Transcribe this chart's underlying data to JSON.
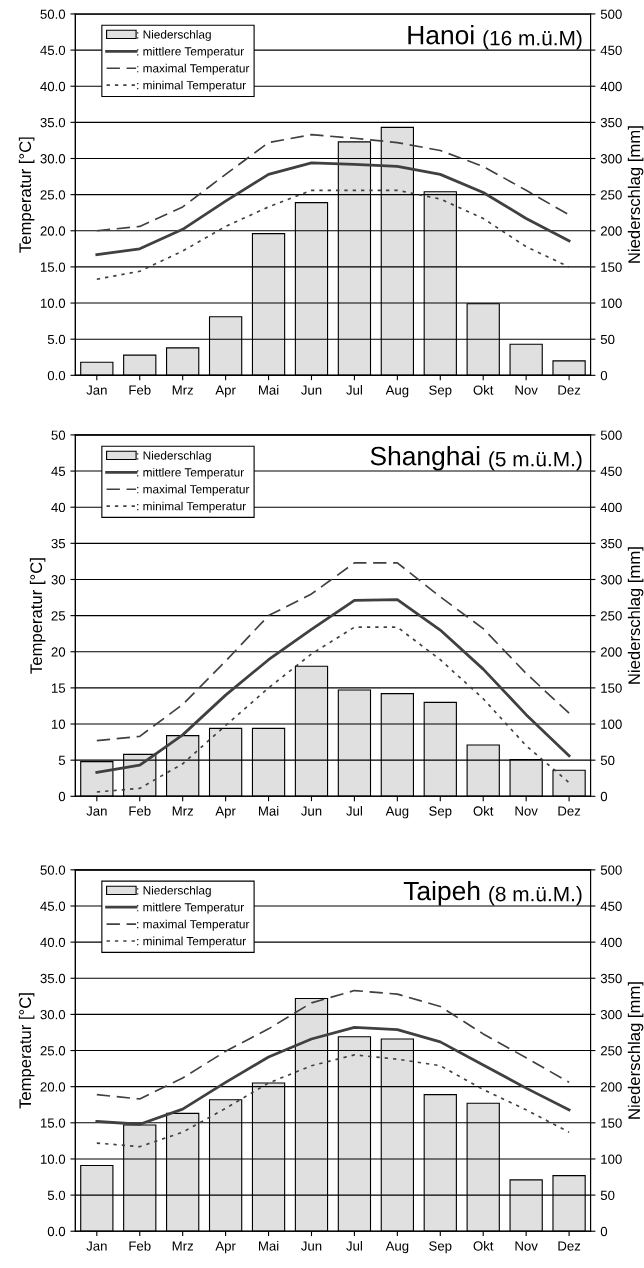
{
  "chart_data": [
    {
      "type": "bar",
      "title": "Hanoi",
      "subtitle": "(16 m.ü.M)",
      "categories": [
        "Jan",
        "Feb",
        "Mrz",
        "Apr",
        "Mai",
        "Jun",
        "Jul",
        "Aug",
        "Sep",
        "Okt",
        "Nov",
        "Dez"
      ],
      "ylabel": "Temperatur [°C]",
      "y2label": "Niederschlag [mm]",
      "ylim": [
        0,
        50
      ],
      "yticks": [
        {
          "value": 0,
          "label": "0.0"
        },
        {
          "value": 5,
          "label": "5.0"
        },
        {
          "value": 10,
          "label": "10.0"
        },
        {
          "value": 15,
          "label": "15.0"
        },
        {
          "value": 20,
          "label": "20.0"
        },
        {
          "value": 25,
          "label": "25.0"
        },
        {
          "value": 30,
          "label": "30.0"
        },
        {
          "value": 35,
          "label": "35.0"
        },
        {
          "value": 40,
          "label": "40.0"
        },
        {
          "value": 45,
          "label": "45.0"
        },
        {
          "value": 50,
          "label": "50.0"
        }
      ],
      "y2lim": [
        0,
        500
      ],
      "y2ticks": [
        0,
        50,
        100,
        150,
        200,
        250,
        300,
        350,
        400,
        450,
        500
      ],
      "grid": "y",
      "legend": "top left",
      "series": [
        {
          "name": ": Niederschlag",
          "axis": "y2",
          "color": "#e0e0e0",
          "values": [
            18,
            28,
            38,
            81,
            196,
            239,
            323,
            343,
            254,
            99,
            43,
            20
          ]
        },
        {
          "name": ": mittlere Temperatur",
          "type": "line",
          "line_style": "solid",
          "color": "#404040",
          "values": [
            16.7,
            17.5,
            20.2,
            24.1,
            27.8,
            29.4,
            29.2,
            28.9,
            27.8,
            25.3,
            21.7,
            18.6
          ]
        },
        {
          "name": ": maximal Temperatur",
          "type": "line",
          "line_style": "dashed",
          "color": "#404040",
          "values": [
            20.0,
            20.6,
            23.3,
            27.8,
            32.2,
            33.3,
            32.8,
            32.2,
            31.1,
            28.9,
            25.6,
            22.2
          ]
        },
        {
          "name": ": minimal Temperatur",
          "type": "line",
          "line_style": "dotted",
          "color": "#404040",
          "values": [
            13.3,
            14.4,
            17.2,
            20.6,
            23.3,
            25.6,
            25.6,
            25.6,
            24.4,
            21.7,
            17.8,
            15.0
          ]
        }
      ]
    },
    {
      "type": "bar",
      "title": "Shanghai",
      "subtitle": "(5 m.ü.M.)",
      "categories": [
        "Jan",
        "Feb",
        "Mrz",
        "Apr",
        "Mai",
        "Jun",
        "Jul",
        "Aug",
        "Sep",
        "Okt",
        "Nov",
        "Dez"
      ],
      "ylabel": "Temperatur [°C]",
      "y2label": "Niederschlag [mm]",
      "ylim": [
        0,
        50
      ],
      "yticks": [
        0,
        5,
        10,
        15,
        20,
        25,
        30,
        35,
        40,
        45,
        50
      ],
      "y2lim": [
        0,
        500
      ],
      "y2ticks": [
        0,
        50,
        100,
        150,
        200,
        250,
        300,
        350,
        400,
        450,
        500
      ],
      "grid": "y",
      "legend": "top left",
      "series": [
        {
          "name": ": Niederschlag",
          "axis": "y2",
          "color": "#e0e0e0",
          "values": [
            48,
            58,
            84,
            94,
            94,
            180,
            147,
            142,
            130,
            71,
            51,
            36
          ]
        },
        {
          "name": ": mittlere Temperatur",
          "type": "line",
          "line_style": "solid",
          "color": "#404040",
          "values": [
            3.3,
            4.3,
            8.5,
            14.0,
            18.9,
            23.1,
            27.1,
            27.2,
            23.0,
            17.6,
            11.3,
            5.6
          ]
        },
        {
          "name": ": maximal Temperatur",
          "type": "line",
          "line_style": "dashed",
          "color": "#404040",
          "values": [
            7.7,
            8.3,
            12.7,
            18.7,
            25.0,
            28.0,
            32.3,
            32.3,
            27.6,
            23.2,
            17.0,
            11.5
          ]
        },
        {
          "name": ": minimal Temperatur",
          "type": "line",
          "line_style": "dotted",
          "color": "#404040",
          "values": [
            0.6,
            1.1,
            4.5,
            9.8,
            15.0,
            19.7,
            23.4,
            23.4,
            18.9,
            13.5,
            7.0,
            1.9
          ]
        }
      ]
    },
    {
      "type": "bar",
      "title": "Taipeh",
      "subtitle": "(8 m.ü.M.)",
      "categories": [
        "Jan",
        "Feb",
        "Mrz",
        "Apr",
        "Mai",
        "Jun",
        "Jul",
        "Aug",
        "Sep",
        "Okt",
        "Nov",
        "Dez"
      ],
      "ylabel": "Temperatur [°C]",
      "y2label": "Niederschlag [mm]",
      "ylim": [
        0,
        50
      ],
      "yticks": [
        {
          "value": 0,
          "label": "0.0"
        },
        {
          "value": 5,
          "label": "5.0"
        },
        {
          "value": 10,
          "label": "10.0"
        },
        {
          "value": 15,
          "label": "15.0"
        },
        {
          "value": 20,
          "label": "20.0"
        },
        {
          "value": 25,
          "label": "25.0"
        },
        {
          "value": 30,
          "label": "30.0"
        },
        {
          "value": 35,
          "label": "35.0"
        },
        {
          "value": 40,
          "label": "40.0"
        },
        {
          "value": 45,
          "label": "45.0"
        },
        {
          "value": 50,
          "label": "50.0"
        }
      ],
      "y2lim": [
        0,
        500
      ],
      "y2ticks": [
        0,
        50,
        100,
        150,
        200,
        250,
        300,
        350,
        400,
        450,
        500
      ],
      "grid": "y",
      "legend": "top left",
      "series": [
        {
          "name": ": Niederschlag",
          "axis": "y2",
          "color": "#e0e0e0",
          "values": [
            91,
            147,
            163,
            182,
            205,
            322,
            269,
            266,
            189,
            177,
            71,
            77
          ]
        },
        {
          "name": ": mittlere Temperatur",
          "type": "line",
          "line_style": "solid",
          "color": "#404040",
          "values": [
            15.2,
            14.8,
            16.9,
            20.6,
            24.1,
            26.6,
            28.2,
            27.9,
            26.2,
            23.0,
            19.8,
            16.8
          ]
        },
        {
          "name": ": maximal Temperatur",
          "type": "line",
          "line_style": "dashed",
          "color": "#404040",
          "values": [
            18.9,
            18.3,
            21.2,
            24.9,
            28.0,
            31.6,
            33.3,
            32.8,
            31.1,
            27.3,
            24.0,
            20.6
          ]
        },
        {
          "name": ": minimal Temperatur",
          "type": "line",
          "line_style": "dotted",
          "color": "#404040",
          "values": [
            12.2,
            11.7,
            13.7,
            17.0,
            20.5,
            22.9,
            24.4,
            23.8,
            22.9,
            19.6,
            16.8,
            13.7
          ]
        }
      ]
    }
  ]
}
